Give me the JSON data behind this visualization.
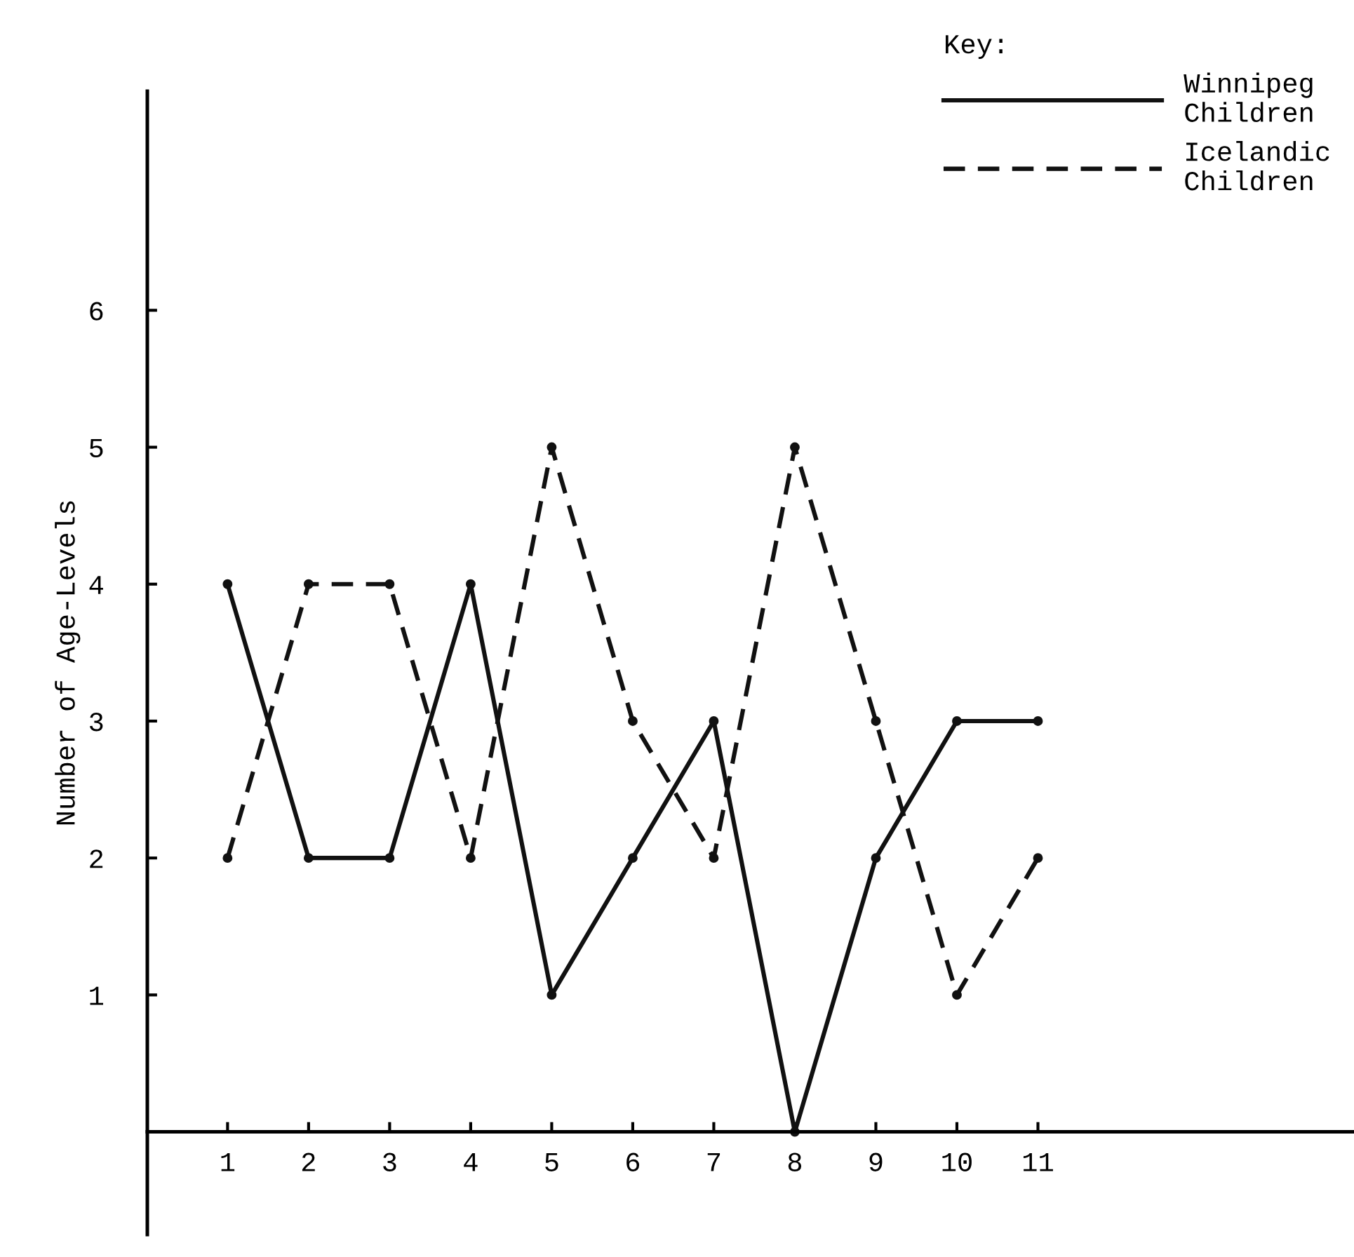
{
  "chart_data": {
    "type": "line",
    "ylabel": "Number of Age-Levels",
    "legend_title": "Key:",
    "categories": [
      "1",
      "2",
      "3",
      "4",
      "5",
      "6",
      "7",
      "8",
      "9",
      "10",
      "11"
    ],
    "series": [
      {
        "name": "Winnipeg\nChildren",
        "color": "#111111",
        "line_style": "solid",
        "values": [
          4,
          2,
          2,
          4,
          1,
          2,
          3,
          0,
          2,
          3,
          3
        ]
      },
      {
        "name": "Icelandic\nChildren",
        "color": "#111111",
        "line_style": "dashed",
        "values": [
          2,
          4,
          4,
          2,
          5,
          3,
          2,
          5,
          3,
          1,
          2
        ]
      }
    ],
    "ylim": [
      -0.75,
      7.6
    ],
    "yticks": [
      1,
      2,
      3,
      4,
      5,
      6
    ],
    "grid": false,
    "legend": "top right",
    "marker": "circle"
  }
}
